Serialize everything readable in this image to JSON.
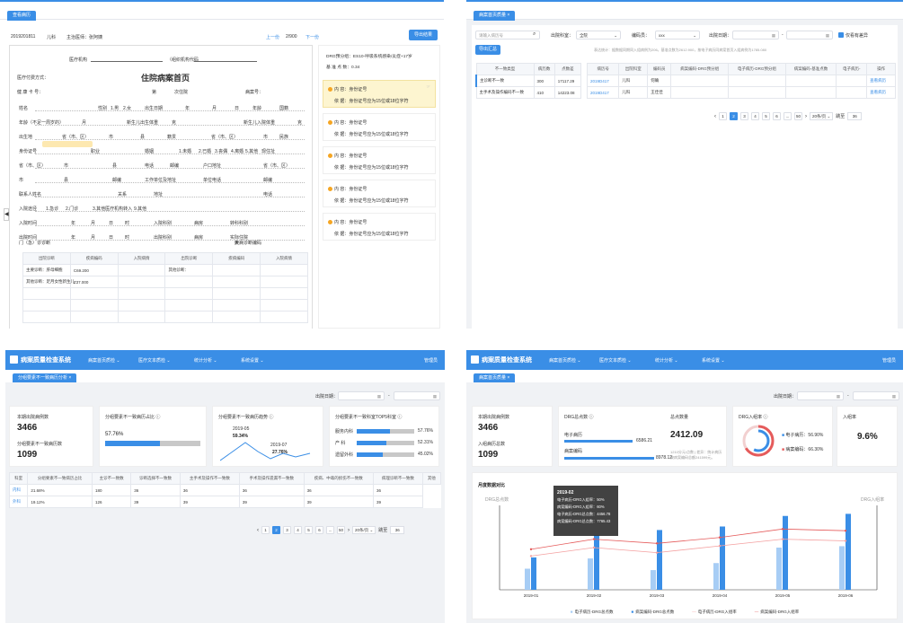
{
  "q1": {
    "tab": "查看病历",
    "record_id": "2019201811",
    "dept": "儿科",
    "chief": "主治医师：张阿姨",
    "prev": "上一份",
    "page": "2/900",
    "next": "下一份",
    "export": "导出结果",
    "org_label": "医疗机构",
    "org_code": "（组织机构代码",
    "pay_label": "医疗付费方式：",
    "title": "住院病案首页",
    "times_label": "第",
    "times_suffix": "次住院",
    "health_card": "健 康 卡 号：",
    "case_no": "病案号：",
    "form_labels": [
      "姓名",
      "性别",
      "1.男",
      "2.女",
      "出生日期",
      "年",
      "月",
      "日",
      "年龄",
      "国籍",
      "年龄（不足一周岁的）",
      "月",
      "新生儿出生体重",
      "克",
      "新生儿入院体重",
      "克",
      "出生地",
      "省（市、区）",
      "市",
      "县",
      "籍贯",
      "省（市、区）",
      "市",
      "民族",
      "身份证号",
      "职业",
      "婚姻",
      "1.未婚",
      "2.已婚",
      "3.丧偶",
      "4.离婚",
      "5.其他",
      "现住址",
      "省（市、区）",
      "市",
      "县",
      "电话",
      "邮编",
      "户口地址",
      "省（市、区）",
      "市",
      "县",
      "邮编",
      "工作单位及地址",
      "单位电话",
      "邮编",
      "联系人姓名",
      "关系",
      "地址",
      "电话",
      "入院途径",
      "1.急诊",
      "2.门诊",
      "3.其他医疗机构转入",
      "9.其他",
      "入院时间",
      "年",
      "月",
      "日",
      "时",
      "入院科别",
      "病房",
      "转科科别",
      "出院时间",
      "年",
      "月",
      "日",
      "时",
      "出院科别",
      "病房",
      "实际住院",
      "天",
      "门（急）诊诊断",
      "疾病诊断编码"
    ],
    "diag_headers": [
      "出院诊断",
      "疾病编码",
      "入院病情",
      "出院诊断",
      "疾病编码",
      "入院病情"
    ],
    "diag_rows": [
      [
        "主要诊断：肝母细胞",
        "C69.200",
        "",
        "其他诊断：",
        "",
        ""
      ],
      [
        "其他诊断：足月女性新生儿",
        "Z37.000",
        "",
        "",
        "",
        ""
      ],
      [
        "",
        "",
        "",
        "",
        "",
        ""
      ],
      [
        "",
        "",
        "",
        "",
        "",
        ""
      ],
      [
        "",
        "",
        "",
        "",
        "",
        ""
      ]
    ],
    "drg_group": "DRG预分组：ES10-呼吸系统感染/炎症+17岁",
    "base_points": "基 准 点 数：0.34",
    "rules": [
      {
        "content": "内 容：身份证号",
        "basis": "依 据：身份证号应为15位或18位字符"
      },
      {
        "content": "内 容：身份证号",
        "basis": "依 据：身份证号应为15位或18位字符"
      },
      {
        "content": "内 容：身份证号",
        "basis": "依 据：身份证号应为15位或18位字符"
      },
      {
        "content": "内 容：身份证号",
        "basis": "依 据：身份证号应为15位或18位字符"
      },
      {
        "content": "内 容：身份证号",
        "basis": "依 据：身份证号应为15位或18位字符"
      }
    ]
  },
  "q2": {
    "tab": "病案首页质量",
    "search_placeholder": "请输入病历号",
    "dept_label": "出院科室：",
    "dept_value": "全院",
    "code_label": "编码员：",
    "code_value": "xxx",
    "date_label": "出院日期：",
    "only_label": "仅看有差异",
    "export": "导出汇总",
    "note": "表达统计：据数据同期同入组病例为206，基准点数为2612.900，按电子病历同病案首页入组病例为1785.080",
    "left_headers": [
      "不一致类型",
      "病历数",
      "点数差"
    ],
    "left_rows": [
      [
        "主诊断不一致",
        "300",
        "17117.29"
      ],
      [
        "主手术及操作编码不一致",
        "410",
        "14223.08"
      ]
    ],
    "right_headers": [
      "病历号",
      "出院科室",
      "编码员",
      "病案编码-DRG预分组",
      "电子病历-DRG预分组",
      "病案编码-基准点数",
      "电子病历-",
      "操作"
    ],
    "right_rows": [
      [
        "2019D417",
        "儿科",
        "何确",
        "",
        "",
        "",
        "",
        "查看病历"
      ],
      [
        "2019D417",
        "儿科",
        "王佳佳",
        "",
        "",
        "",
        "",
        "查看病历"
      ]
    ],
    "pages": [
      "1",
      "2",
      "3",
      "4",
      "5",
      "6",
      "...",
      "50"
    ],
    "per_page": "20条/页",
    "goto": "跳至",
    "goto_val": "36"
  },
  "q3": {
    "app": "病案质量检查系统",
    "nav": [
      "病案首页质检",
      "医疗文本质检",
      "统计分析",
      "系统设置"
    ],
    "user": "管理员",
    "tab": "分组要素不一致病历分析",
    "date_label": "出院日期：",
    "total_label": "本期出院病例数",
    "total": "3466",
    "diff_label": "分组要素不一致病历数",
    "diff": "1099",
    "ratio_label": "分组要素不一致病历占比",
    "ratio": "57.76%",
    "trend_label": "分组要素不一致病历趋势",
    "trend_a": "2019-05",
    "trend_a_val": "59.34%",
    "trend_b": "2019-07",
    "trend_b_val": "27.76%",
    "top_label": "分组要素不一致科室TOP5科室",
    "top": [
      [
        "服务内科",
        "57.76%"
      ],
      [
        "产 科",
        "52.31%"
      ],
      [
        "遗留外科",
        "45.02%"
      ]
    ],
    "headers": [
      "科室",
      "分组要素不一致病历占比",
      "主诊不一致数",
      "诊断选择不一致数",
      "主手术及操作不一致数",
      "手术及操作遗漏不一致数",
      "疾病、中毒的损伤不一致数",
      "病理诊断不一致数",
      "其他"
    ],
    "rows": [
      [
        "内科",
        "21.68%",
        "180",
        "36",
        "36",
        "36",
        "36",
        "36"
      ],
      [
        "外科",
        "19.12%",
        "126",
        "39",
        "39",
        "39",
        "39",
        "39"
      ]
    ],
    "pages": [
      "1",
      "2",
      "3",
      "4",
      "5",
      "6",
      "...",
      "50"
    ],
    "per_page": "20条/页",
    "goto": "跳至",
    "goto_val": "36"
  },
  "q4": {
    "app": "病案质量检查系统",
    "nav": [
      "病案首页质检",
      "医疗文本质检",
      "统计分析",
      "系统设置"
    ],
    "user": "管理员",
    "tab": "病案首页质量",
    "date_label": "出院日期：",
    "total_label": "本期出院病例数",
    "total": "3466",
    "in_label": "入组病历总数",
    "in": "1099",
    "drg_label": "DRG总点数",
    "emr_label": "电子病历",
    "emr_val": "6586.21",
    "case_label": "病案编码",
    "case_val": "8978.12",
    "total_pts_label": "总点数量",
    "total_pts": "2412.09",
    "sub_note": "1210分元/点数 | 差异：统计病历",
    "sub_note2": "按病案编码总额241599元。",
    "drg_in_label": "DRG入组率",
    "emr_rate": "电子病历：56.90%",
    "case_rate": "病案编码：66.30%",
    "in_rate_label": "入组率",
    "in_rate": "9.6%",
    "chart_title": "月度数据对比",
    "y_left": "DRG总点数",
    "y_right": "DRG入组率",
    "tip_title": "2019-02",
    "tip_lines": [
      "电子病历-DRG入组率：50%",
      "病案编码-DRG入组率：60%",
      "电子病历-DRG总点数：4456.78",
      "病案编码-DRG总点数：7765.43"
    ]
  },
  "chart_data": {
    "type": "bar",
    "title": "月度数据对比",
    "categories": [
      "2019-01",
      "2019-02",
      "2019-03",
      "2019-04",
      "2019-05",
      "2019-06"
    ],
    "series": [
      {
        "name": "电子病历-DRG总点数",
        "type": "bar",
        "values": [
          3000,
          4456.78,
          2800,
          3800,
          6000,
          6200
        ]
      },
      {
        "name": "病案编码-DRG总点数",
        "type": "bar",
        "values": [
          4600,
          7765.43,
          8500,
          9000,
          10500,
          10800
        ]
      },
      {
        "name": "电子病历-DRG入组率",
        "type": "line",
        "values": [
          40,
          50,
          44,
          52,
          60,
          58
        ]
      },
      {
        "name": "病案编码-DRG入组率",
        "type": "line",
        "values": [
          48,
          60,
          55,
          62,
          72,
          70
        ]
      }
    ],
    "ylabel": "DRG总点数",
    "y2label": "DRG入组率",
    "colors": [
      "#a7cdf5",
      "#3a8ee6",
      "#f4a0a0",
      "#e55b5b"
    ]
  }
}
